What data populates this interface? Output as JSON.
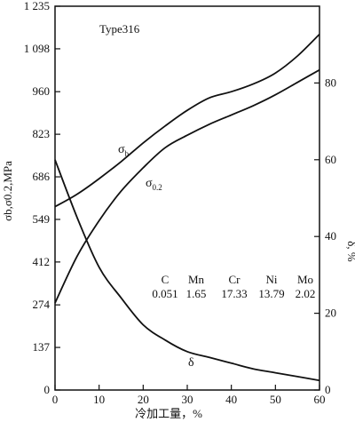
{
  "chart_data": {
    "type": "line",
    "title": "",
    "xlabel": "冷加工量，%",
    "ylabel_left": "σb,σ0.2,MPa",
    "ylabel_right": "δ, %",
    "xlim": [
      0,
      60
    ],
    "ylim_left": [
      0,
      1235
    ],
    "ylim_right": [
      0,
      100
    ],
    "x_ticks": [
      "0",
      "10",
      "20",
      "30",
      "40",
      "50",
      "60"
    ],
    "y_left_ticks": [
      "0",
      "137",
      "274",
      "412",
      "549",
      "686",
      "823",
      "960",
      "1 098",
      "1 235"
    ],
    "y_right_ticks": [
      "0",
      "20",
      "40",
      "60",
      "80"
    ],
    "grid": false,
    "annotations": {
      "material": "Type316",
      "composition": {
        "elements": [
          "C",
          "Mn",
          "Cr",
          "Ni",
          "Mo"
        ],
        "values": [
          "0.051",
          "1.65",
          "17.33",
          "13.79",
          "2.02"
        ]
      }
    },
    "series": [
      {
        "name": "σb",
        "label_main": "σ",
        "label_sub": "b",
        "axis": "left",
        "x": [
          0,
          5,
          10,
          15,
          20,
          25,
          30,
          35,
          40,
          45,
          50,
          55,
          60
        ],
        "y": [
          590,
          630,
          680,
          735,
          795,
          850,
          900,
          940,
          960,
          985,
          1020,
          1075,
          1145
        ]
      },
      {
        "name": "σ0.2",
        "label_main": "σ",
        "label_sub": "0.2",
        "axis": "left",
        "x": [
          0,
          5,
          10,
          15,
          20,
          25,
          30,
          35,
          40,
          45,
          50,
          55,
          60
        ],
        "y": [
          280,
          430,
          545,
          640,
          715,
          780,
          820,
          855,
          885,
          915,
          950,
          990,
          1030
        ]
      },
      {
        "name": "δ",
        "label_main": "δ",
        "label_sub": "",
        "axis": "right",
        "x": [
          0,
          5,
          10,
          15,
          20,
          25,
          30,
          35,
          40,
          45,
          50,
          55,
          60
        ],
        "y": [
          60,
          45,
          32,
          24,
          17,
          13,
          10,
          8.5,
          7,
          5.5,
          4.5,
          3.5,
          2.5
        ]
      }
    ]
  }
}
